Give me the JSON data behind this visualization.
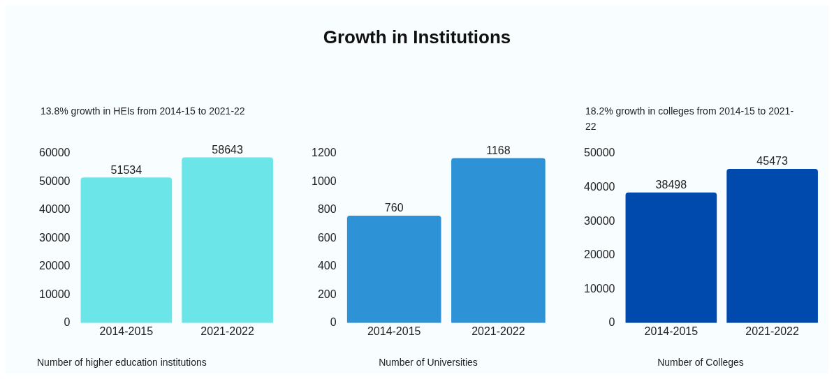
{
  "chart_data": [
    {
      "type": "other",
      "title": "Growth in Institutions"
    },
    {
      "type": "bar",
      "subtitle": "13.8% growth in HEIs from 2014-15 to 2021-22",
      "xlabel": "Number of higher education institutions",
      "categories": [
        "2014-2015",
        "2021-2022"
      ],
      "values": [
        51534,
        58643
      ],
      "color": "#6ce5e8",
      "ylim": [
        0,
        60000
      ],
      "yticks": [
        0,
        10000,
        20000,
        30000,
        40000,
        50000,
        60000
      ],
      "grid": false,
      "data_labels": true
    },
    {
      "type": "bar",
      "xlabel": "Number of Universities",
      "categories": [
        "2014-2015",
        "2021-2022"
      ],
      "values": [
        760,
        1168
      ],
      "color": "#2e92d6",
      "ylim": [
        0,
        1200
      ],
      "yticks": [
        0,
        200,
        400,
        600,
        800,
        1000,
        1200
      ],
      "grid": false,
      "data_labels": true
    },
    {
      "type": "bar",
      "subtitle": "18.2% growth in colleges from 2014-15 to 2021-22",
      "xlabel": "Number of Colleges",
      "categories": [
        "2014-2015",
        "2021-2022"
      ],
      "values": [
        38498,
        45473
      ],
      "color": "#004aad",
      "ylim": [
        0,
        50000
      ],
      "yticks": [
        0,
        10000,
        20000,
        30000,
        40000,
        50000
      ],
      "grid": false,
      "data_labels": true
    }
  ]
}
